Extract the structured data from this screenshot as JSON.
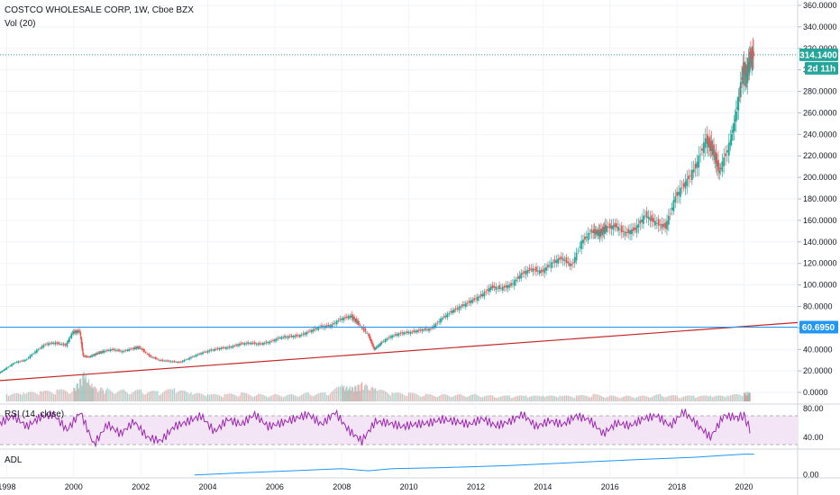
{
  "chart_data": {
    "type": "line",
    "title": "COSTCO WHOLESALE CORP, 1W, Cboe BZX",
    "subtitle": "Vol (20)",
    "price_panel": {
      "ylim": [
        -10,
        365
      ],
      "yticks": [
        "360.0000",
        "340.0000",
        "320.0000",
        "300.0000",
        "280.0000",
        "260.0000",
        "240.0000",
        "220.0000",
        "200.0000",
        "180.0000",
        "160.0000",
        "140.0000",
        "120.0000",
        "100.0000",
        "80.0000",
        "60.0000",
        "40.0000",
        "20.0000",
        "0.0000"
      ],
      "ytick_values": [
        360,
        340,
        320,
        300,
        280,
        260,
        240,
        220,
        200,
        180,
        160,
        140,
        120,
        100,
        80,
        60,
        40,
        20,
        0
      ],
      "last_price_label": "314.1400",
      "countdown_label": "2d 11h",
      "horizontal_level_label": "60.6950",
      "horizontal_level": 60.695,
      "trendline": {
        "x": [
          1997.8,
          2021.6
        ],
        "y": [
          11,
          65
        ]
      },
      "series": [
        {
          "type": "candlestick",
          "x": [
            1997.8,
            1998.0,
            1998.3,
            1998.6,
            1998.9,
            1999.2,
            1999.5,
            1999.8,
            2000.0,
            2000.2,
            2000.3,
            2000.5,
            2000.7,
            2000.9,
            2001.2,
            2001.5,
            2001.8,
            2002.0,
            2002.3,
            2002.6,
            2002.9,
            2003.2,
            2003.5,
            2003.8,
            2004.1,
            2004.4,
            2004.7,
            2005.0,
            2005.3,
            2005.6,
            2005.9,
            2006.2,
            2006.5,
            2006.8,
            2007.1,
            2007.4,
            2007.7,
            2008.0,
            2008.3,
            2008.5,
            2008.8,
            2009.0,
            2009.2,
            2009.5,
            2009.8,
            2010.1,
            2010.4,
            2010.7,
            2011.0,
            2011.3,
            2011.6,
            2011.9,
            2012.2,
            2012.5,
            2012.8,
            2013.1,
            2013.4,
            2013.7,
            2014.0,
            2014.3,
            2014.6,
            2014.9,
            2015.2,
            2015.5,
            2015.7,
            2015.9,
            2016.2,
            2016.5,
            2016.8,
            2017.1,
            2017.4,
            2017.7,
            2018.0,
            2018.3,
            2018.6,
            2018.9,
            2019.1,
            2019.3,
            2019.6,
            2019.8,
            2020.0,
            2020.1,
            2020.2,
            2020.3
          ],
          "close": [
            18,
            22,
            28,
            30,
            38,
            45,
            46,
            44,
            56,
            57,
            34,
            33,
            36,
            38,
            40,
            38,
            41,
            42,
            34,
            30,
            29,
            28,
            32,
            36,
            39,
            41,
            42,
            45,
            46,
            45,
            47,
            51,
            52,
            53,
            57,
            61,
            62,
            68,
            71,
            65,
            55,
            40,
            46,
            52,
            55,
            56,
            58,
            59,
            68,
            75,
            80,
            85,
            90,
            98,
            97,
            100,
            110,
            115,
            112,
            120,
            125,
            118,
            140,
            150,
            148,
            153,
            155,
            148,
            152,
            165,
            158,
            154,
            182,
            195,
            210,
            235,
            225,
            205,
            230,
            260,
            300,
            295,
            310,
            314
          ]
        }
      ]
    },
    "volume_panel": {
      "x": [
        1998.0,
        1998.5,
        1999.0,
        1999.5,
        2000.0,
        2000.3,
        2000.6,
        2001.0,
        2001.5,
        2002.0,
        2002.5,
        2003.0,
        2003.5,
        2004.0,
        2004.5,
        2005.0,
        2005.5,
        2006.0,
        2006.5,
        2007.0,
        2007.5,
        2008.0,
        2008.3,
        2008.6,
        2009.0,
        2009.5,
        2010.0,
        2010.5,
        2011.0,
        2011.5,
        2012.0,
        2012.5,
        2013.0,
        2013.5,
        2014.0,
        2014.5,
        2015.0,
        2015.5,
        2016.0,
        2016.5,
        2017.0,
        2017.5,
        2018.0,
        2018.5,
        2019.0,
        2019.5,
        2020.0,
        2020.2
      ],
      "values": [
        0.5,
        0.6,
        0.7,
        0.8,
        0.9,
        2.0,
        1.0,
        0.9,
        0.8,
        0.8,
        0.7,
        0.9,
        0.6,
        0.5,
        0.5,
        0.6,
        0.5,
        0.5,
        0.5,
        0.6,
        0.6,
        1.1,
        1.0,
        1.3,
        0.9,
        0.6,
        0.6,
        0.5,
        0.5,
        0.5,
        0.5,
        0.4,
        0.4,
        0.4,
        0.4,
        0.4,
        0.4,
        0.5,
        0.4,
        0.4,
        0.4,
        0.5,
        0.4,
        0.4,
        0.4,
        0.4,
        0.6,
        0.7
      ]
    },
    "rsi_panel": {
      "label": "RSI (14, close)",
      "yticks": [
        "80.00",
        "40.00"
      ],
      "ytick_values": [
        80,
        40
      ],
      "upper_band": 70,
      "lower_band": 30,
      "ylim": [
        25,
        85
      ],
      "x": [
        1997.8,
        1998.2,
        1998.6,
        1999.0,
        1999.4,
        1999.8,
        2000.2,
        2000.6,
        2001.0,
        2001.4,
        2001.8,
        2002.2,
        2002.6,
        2003.0,
        2003.4,
        2003.8,
        2004.2,
        2004.6,
        2005.0,
        2005.4,
        2005.8,
        2006.2,
        2006.6,
        2007.0,
        2007.4,
        2007.8,
        2008.2,
        2008.6,
        2009.0,
        2009.4,
        2009.8,
        2010.2,
        2010.6,
        2011.0,
        2011.4,
        2011.8,
        2012.2,
        2012.6,
        2013.0,
        2013.4,
        2013.8,
        2014.2,
        2014.6,
        2015.0,
        2015.4,
        2015.8,
        2016.2,
        2016.6,
        2017.0,
        2017.4,
        2017.8,
        2018.2,
        2018.6,
        2019.0,
        2019.4,
        2019.8,
        2020.0,
        2020.2
      ],
      "values": [
        60,
        70,
        55,
        68,
        72,
        50,
        75,
        30,
        58,
        45,
        62,
        40,
        35,
        55,
        62,
        70,
        48,
        65,
        58,
        72,
        55,
        60,
        66,
        72,
        58,
        75,
        50,
        35,
        62,
        60,
        55,
        58,
        60,
        65,
        62,
        58,
        66,
        56,
        62,
        72,
        55,
        63,
        58,
        70,
        64,
        45,
        60,
        56,
        66,
        70,
        56,
        76,
        58,
        40,
        70,
        68,
        70,
        48
      ]
    },
    "adl_panel": {
      "label": "ADL",
      "yticks": [
        "0.00"
      ],
      "ytick_values": [
        0
      ],
      "ylim": [
        -2,
        24
      ],
      "x": [
        2003.6,
        2005.0,
        2006.5,
        2008.0,
        2008.8,
        2009.5,
        2011.0,
        2013.0,
        2015.0,
        2017.0,
        2018.5,
        2019.5,
        2020.0,
        2020.3
      ],
      "values": [
        0,
        2,
        4,
        6,
        4,
        6,
        7,
        9,
        12,
        15,
        17,
        19,
        20,
        20
      ]
    },
    "x_axis": {
      "ticks": [
        "1998",
        "2000",
        "2002",
        "2004",
        "2006",
        "2008",
        "2010",
        "2012",
        "2014",
        "2016",
        "2018",
        "2020"
      ],
      "tick_values": [
        1998,
        2000,
        2002,
        2004,
        2006,
        2008,
        2010,
        2012,
        2014,
        2016,
        2018,
        2020
      ],
      "xlim": [
        1997.8,
        2021.6
      ]
    },
    "colors": {
      "up": "#26a69a",
      "down": "#ef5350",
      "rsi": "#9c27b0",
      "rsi_band": "#f3e5f5",
      "adl": "#2196f3",
      "trendline": "#c62828",
      "hline": "#2196f3",
      "price_tag": "#26a69a",
      "hline_tag": "#2196f3"
    }
  }
}
